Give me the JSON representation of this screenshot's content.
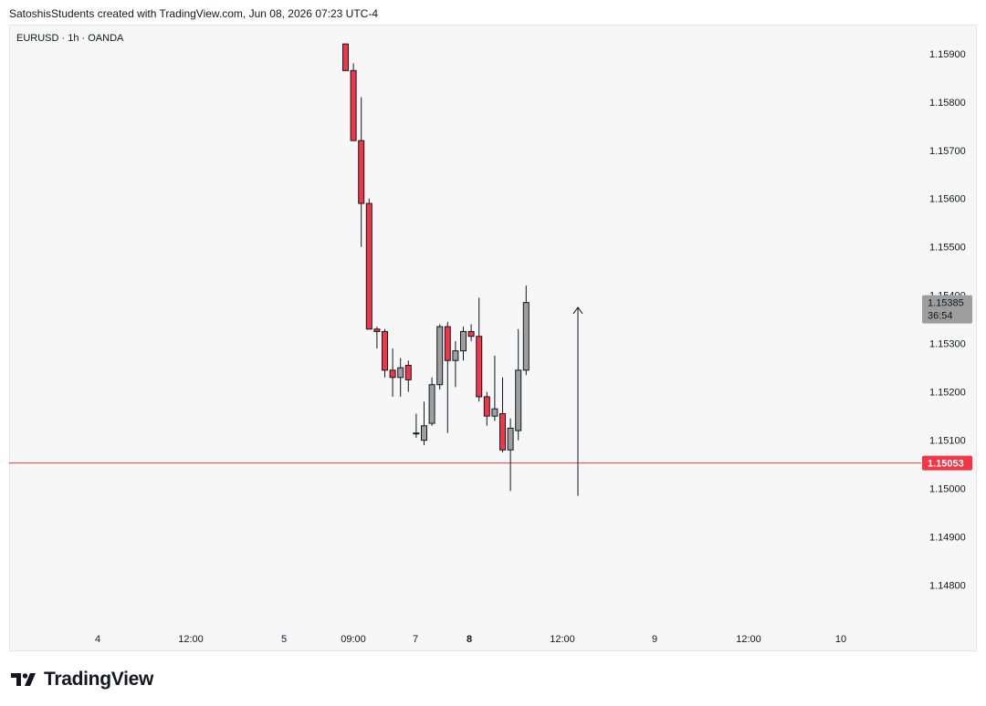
{
  "caption": "SatoshisStudents created with TradingView.com, Jun 08, 2026 07:23 UTC-4",
  "symbol_line": "EURUSD · 1h · OANDA",
  "brand": {
    "name": "TradingView"
  },
  "colors": {
    "up": "#9e9e9e",
    "down": "#f23645",
    "wick": "#131722",
    "level": "#f23645",
    "price_tag": "#9e9e9e",
    "background": "#f7f7f7"
  },
  "chart_data": {
    "type": "candlestick",
    "ylim": [
      1.1472,
      1.1596
    ],
    "y_ticks": [
      "1.15900",
      "1.15800",
      "1.15700",
      "1.15600",
      "1.15500",
      "1.15400",
      "1.15300",
      "1.15200",
      "1.15100",
      "1.15000",
      "1.14900",
      "1.14800"
    ],
    "x_ticks": [
      "4",
      "12:00",
      "5",
      "09:00",
      "7",
      "8",
      "12:00",
      "9",
      "12:00",
      "10"
    ],
    "x_ticks_bold": [
      "8"
    ],
    "candles": [
      {
        "o": 1.1592,
        "h": 1.1592,
        "l": 1.15865,
        "c": 1.15865
      },
      {
        "o": 1.15865,
        "h": 1.1588,
        "l": 1.1572,
        "c": 1.1572
      },
      {
        "o": 1.1572,
        "h": 1.1581,
        "l": 1.155,
        "c": 1.1559
      },
      {
        "o": 1.1559,
        "h": 1.156,
        "l": 1.1533,
        "c": 1.1533
      },
      {
        "o": 1.1533,
        "h": 1.15335,
        "l": 1.1529,
        "c": 1.15325
      },
      {
        "o": 1.15325,
        "h": 1.1533,
        "l": 1.1523,
        "c": 1.15245
      },
      {
        "o": 1.15245,
        "h": 1.1529,
        "l": 1.1519,
        "c": 1.1523
      },
      {
        "o": 1.1523,
        "h": 1.1527,
        "l": 1.1519,
        "c": 1.1525
      },
      {
        "o": 1.15255,
        "h": 1.15265,
        "l": 1.152,
        "c": 1.15225
      },
      {
        "o": 1.15115,
        "h": 1.15155,
        "l": 1.15105,
        "c": 1.15115
      },
      {
        "o": 1.151,
        "h": 1.1518,
        "l": 1.1509,
        "c": 1.1513
      },
      {
        "o": 1.15135,
        "h": 1.1523,
        "l": 1.1513,
        "c": 1.15215
      },
      {
        "o": 1.15215,
        "h": 1.1534,
        "l": 1.15205,
        "c": 1.15335
      },
      {
        "o": 1.15335,
        "h": 1.15345,
        "l": 1.15115,
        "c": 1.15265
      },
      {
        "o": 1.15265,
        "h": 1.15305,
        "l": 1.1521,
        "c": 1.15285
      },
      {
        "o": 1.15285,
        "h": 1.15335,
        "l": 1.15265,
        "c": 1.15325
      },
      {
        "o": 1.15325,
        "h": 1.1534,
        "l": 1.15305,
        "c": 1.15315
      },
      {
        "o": 1.15315,
        "h": 1.15395,
        "l": 1.1518,
        "c": 1.1519
      },
      {
        "o": 1.1519,
        "h": 1.152,
        "l": 1.1513,
        "c": 1.1515
      },
      {
        "o": 1.1515,
        "h": 1.15275,
        "l": 1.1514,
        "c": 1.15165
      },
      {
        "o": 1.15155,
        "h": 1.1523,
        "l": 1.15075,
        "c": 1.1508
      },
      {
        "o": 1.1508,
        "h": 1.15145,
        "l": 1.14995,
        "c": 1.15125
      },
      {
        "o": 1.1512,
        "h": 1.1533,
        "l": 1.151,
        "c": 1.15245
      },
      {
        "o": 1.15245,
        "h": 1.1542,
        "l": 1.15235,
        "c": 1.15385
      }
    ],
    "horizontal_line": {
      "value": 1.15053,
      "label": "1.15053"
    },
    "arrow": {
      "from": 1.14985,
      "to": 1.15375
    },
    "last_price": {
      "label": "1.15385",
      "countdown": "36:54"
    }
  }
}
